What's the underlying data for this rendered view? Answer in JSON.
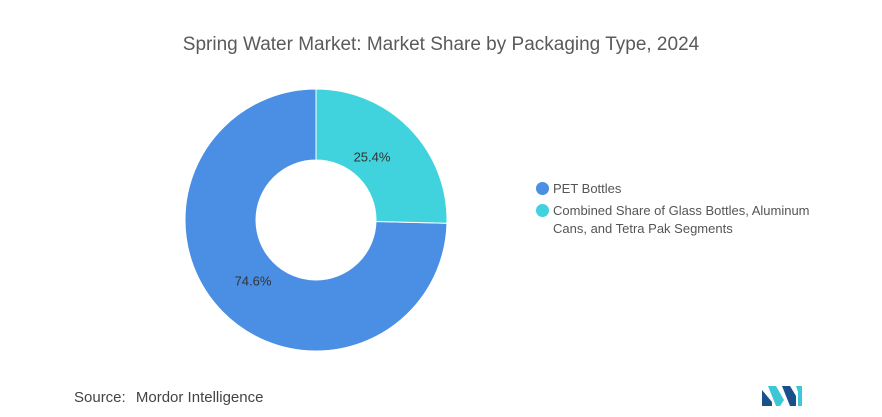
{
  "header": {
    "title": "Spring Water Market: Market Share by Packaging Type, 2024"
  },
  "chart_data": {
    "type": "pie",
    "subtype": "donut",
    "title": "Spring Water Market: Market Share by Packaging Type, 2024",
    "legend_position": "right",
    "series": [
      {
        "name": "PET Bottles",
        "value": 74.6,
        "label": "74.6%",
        "color": "#4a8fe3"
      },
      {
        "name": "Combined Share of Glass Bottles, Aluminum Cans, and Tetra Pak Segments",
        "value": 25.4,
        "label": "25.4%",
        "color": "#40d3dd"
      }
    ],
    "legend": {
      "items": [
        {
          "lines": [
            "PET Bottles"
          ],
          "color": "#4a8fe3"
        },
        {
          "lines": [
            "Combined Share of Glass Bottles, Aluminum",
            "Cans, and Tetra Pak Segments"
          ],
          "color": "#40d3dd"
        }
      ]
    }
  },
  "footer": {
    "source_label": "Source:",
    "source_value": "Mordor Intelligence"
  },
  "logo": {
    "name": "mordor-intelligence-logo",
    "color_primary": "#1a4f8b",
    "color_accent": "#3cc6d6"
  }
}
